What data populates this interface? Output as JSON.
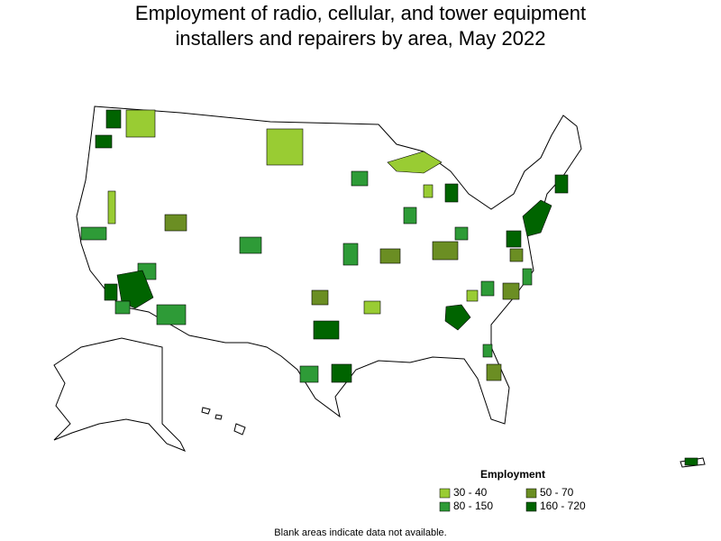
{
  "title": [
    "Employment of radio, cellular, and tower equipment",
    "installers and repairers by area, May 2022"
  ],
  "legend": {
    "title": "Employment",
    "items": [
      {
        "label": "30 - 40",
        "color": "#99cc33"
      },
      {
        "label": "50 - 70",
        "color": "#6b8e23"
      },
      {
        "label": "80 - 150",
        "color": "#2e9b37"
      },
      {
        "label": "160 - 720",
        "color": "#006400"
      }
    ]
  },
  "note": "Blank areas indicate data not available."
}
